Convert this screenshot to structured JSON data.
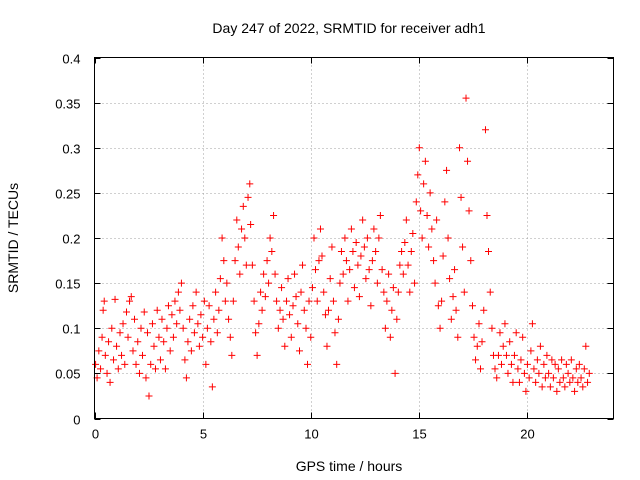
{
  "chart_data": {
    "type": "scatter",
    "title": "Day 247 of 2022, SRMTID for receiver adh1",
    "xlabel": "GPS time / hours",
    "ylabel": "SRMTID / TECUs",
    "xlim": [
      0,
      24
    ],
    "ylim": [
      0,
      0.4
    ],
    "x_ticks": [
      0,
      5,
      10,
      15,
      20
    ],
    "x_tick_labels": [
      "0",
      "5",
      "10",
      "15",
      "20"
    ],
    "y_ticks": [
      0,
      0.05,
      0.1,
      0.15,
      0.2,
      0.25,
      0.3,
      0.35,
      0.4
    ],
    "y_tick_labels": [
      "0",
      "0.05",
      "0.1",
      "0.15",
      "0.2",
      "0.25",
      "0.3",
      "0.35",
      "0.4"
    ],
    "grid": true,
    "marker": "+",
    "color": "#ff0000",
    "series": [
      {
        "name": "SRMTID",
        "points": [
          [
            0.05,
            0.06
          ],
          [
            0.12,
            0.045
          ],
          [
            0.2,
            0.075
          ],
          [
            0.28,
            0.055
          ],
          [
            0.35,
            0.09
          ],
          [
            0.4,
            0.12
          ],
          [
            0.45,
            0.13
          ],
          [
            0.5,
            0.07
          ],
          [
            0.58,
            0.05
          ],
          [
            0.65,
            0.085
          ],
          [
            0.72,
            0.04
          ],
          [
            0.8,
            0.1
          ],
          [
            0.88,
            0.065
          ],
          [
            0.95,
            0.132
          ],
          [
            1.02,
            0.08
          ],
          [
            1.1,
            0.055
          ],
          [
            1.18,
            0.095
          ],
          [
            1.25,
            0.07
          ],
          [
            1.32,
            0.105
          ],
          [
            1.4,
            0.06
          ],
          [
            1.48,
            0.118
          ],
          [
            1.55,
            0.09
          ],
          [
            1.62,
            0.13
          ],
          [
            1.7,
            0.135
          ],
          [
            1.78,
            0.075
          ],
          [
            1.85,
            0.11
          ],
          [
            1.92,
            0.06
          ],
          [
            2.0,
            0.085
          ],
          [
            2.08,
            0.05
          ],
          [
            2.15,
            0.1
          ],
          [
            2.22,
            0.07
          ],
          [
            2.3,
            0.118
          ],
          [
            2.38,
            0.045
          ],
          [
            2.45,
            0.095
          ],
          [
            2.52,
            0.025
          ],
          [
            2.6,
            0.06
          ],
          [
            2.68,
            0.105
          ],
          [
            2.75,
            0.08
          ],
          [
            2.82,
            0.055
          ],
          [
            2.9,
            0.12
          ],
          [
            2.98,
            0.09
          ],
          [
            3.05,
            0.065
          ],
          [
            3.12,
            0.11
          ],
          [
            3.2,
            0.085
          ],
          [
            3.28,
            0.055
          ],
          [
            3.35,
            0.1
          ],
          [
            3.42,
            0.125
          ],
          [
            3.5,
            0.075
          ],
          [
            3.58,
            0.115
          ],
          [
            3.65,
            0.09
          ],
          [
            3.72,
            0.13
          ],
          [
            3.8,
            0.105
          ],
          [
            3.88,
            0.14
          ],
          [
            3.95,
            0.12
          ],
          [
            4.02,
            0.15
          ],
          [
            4.1,
            0.1
          ],
          [
            4.18,
            0.065
          ],
          [
            4.25,
            0.045
          ],
          [
            4.32,
            0.085
          ],
          [
            4.4,
            0.11
          ],
          [
            4.48,
            0.075
          ],
          [
            4.55,
            0.125
          ],
          [
            4.62,
            0.095
          ],
          [
            4.7,
            0.14
          ],
          [
            4.78,
            0.105
          ],
          [
            4.85,
            0.08
          ],
          [
            4.92,
            0.115
          ],
          [
            5.0,
            0.09
          ],
          [
            5.08,
            0.13
          ],
          [
            5.15,
            0.06
          ],
          [
            5.22,
            0.1
          ],
          [
            5.3,
            0.125
          ],
          [
            5.38,
            0.085
          ],
          [
            5.45,
            0.035
          ],
          [
            5.52,
            0.11
          ],
          [
            5.6,
            0.14
          ],
          [
            5.68,
            0.095
          ],
          [
            5.75,
            0.12
          ],
          [
            5.82,
            0.155
          ],
          [
            5.9,
            0.2
          ],
          [
            5.98,
            0.175
          ],
          [
            6.05,
            0.13
          ],
          [
            6.12,
            0.15
          ],
          [
            6.2,
            0.11
          ],
          [
            6.28,
            0.09
          ],
          [
            6.35,
            0.07
          ],
          [
            6.42,
            0.13
          ],
          [
            6.5,
            0.175
          ],
          [
            6.58,
            0.22
          ],
          [
            6.65,
            0.19
          ],
          [
            6.72,
            0.16
          ],
          [
            6.8,
            0.21
          ],
          [
            6.88,
            0.235
          ],
          [
            6.95,
            0.2
          ],
          [
            7.02,
            0.17
          ],
          [
            7.1,
            0.245
          ],
          [
            7.18,
            0.26
          ],
          [
            7.22,
            0.215
          ],
          [
            7.3,
            0.17
          ],
          [
            7.38,
            0.13
          ],
          [
            7.45,
            0.095
          ],
          [
            7.52,
            0.07
          ],
          [
            7.6,
            0.105
          ],
          [
            7.68,
            0.14
          ],
          [
            7.75,
            0.12
          ],
          [
            7.82,
            0.16
          ],
          [
            7.9,
            0.135
          ],
          [
            7.98,
            0.175
          ],
          [
            8.05,
            0.15
          ],
          [
            8.12,
            0.2
          ],
          [
            8.2,
            0.185
          ],
          [
            8.28,
            0.225
          ],
          [
            8.35,
            0.16
          ],
          [
            8.42,
            0.13
          ],
          [
            8.5,
            0.1
          ],
          [
            8.58,
            0.12
          ],
          [
            8.65,
            0.145
          ],
          [
            8.72,
            0.11
          ],
          [
            8.8,
            0.08
          ],
          [
            8.88,
            0.13
          ],
          [
            8.95,
            0.155
          ],
          [
            9.02,
            0.115
          ],
          [
            9.1,
            0.09
          ],
          [
            9.18,
            0.125
          ],
          [
            9.25,
            0.16
          ],
          [
            9.32,
            0.135
          ],
          [
            9.4,
            0.105
          ],
          [
            9.48,
            0.075
          ],
          [
            9.55,
            0.14
          ],
          [
            9.62,
            0.17
          ],
          [
            9.7,
            0.12
          ],
          [
            9.78,
            0.1
          ],
          [
            9.85,
            0.06
          ],
          [
            9.92,
            0.13
          ],
          [
            10.0,
            0.09
          ],
          [
            10.08,
            0.145
          ],
          [
            10.15,
            0.2
          ],
          [
            10.22,
            0.165
          ],
          [
            10.3,
            0.13
          ],
          [
            10.38,
            0.175
          ],
          [
            10.45,
            0.21
          ],
          [
            10.52,
            0.18
          ],
          [
            10.6,
            0.14
          ],
          [
            10.68,
            0.115
          ],
          [
            10.75,
            0.08
          ],
          [
            10.82,
            0.12
          ],
          [
            10.9,
            0.155
          ],
          [
            10.98,
            0.19
          ],
          [
            11.05,
            0.13
          ],
          [
            11.12,
            0.095
          ],
          [
            11.2,
            0.06
          ],
          [
            11.28,
            0.11
          ],
          [
            11.35,
            0.15
          ],
          [
            11.42,
            0.185
          ],
          [
            11.5,
            0.16
          ],
          [
            11.58,
            0.2
          ],
          [
            11.65,
            0.175
          ],
          [
            11.72,
            0.13
          ],
          [
            11.8,
            0.165
          ],
          [
            11.88,
            0.21
          ],
          [
            11.95,
            0.185
          ],
          [
            12.02,
            0.145
          ],
          [
            12.1,
            0.195
          ],
          [
            12.18,
            0.17
          ],
          [
            12.25,
            0.135
          ],
          [
            12.32,
            0.18
          ],
          [
            12.4,
            0.22
          ],
          [
            12.48,
            0.19
          ],
          [
            12.55,
            0.155
          ],
          [
            12.62,
            0.2
          ],
          [
            12.7,
            0.165
          ],
          [
            12.78,
            0.125
          ],
          [
            12.85,
            0.175
          ],
          [
            12.92,
            0.21
          ],
          [
            13.0,
            0.185
          ],
          [
            13.08,
            0.15
          ],
          [
            13.15,
            0.2
          ],
          [
            13.22,
            0.225
          ],
          [
            13.3,
            0.165
          ],
          [
            13.38,
            0.14
          ],
          [
            13.45,
            0.1
          ],
          [
            13.52,
            0.13
          ],
          [
            13.6,
            0.16
          ],
          [
            13.68,
            0.09
          ],
          [
            13.75,
            0.12
          ],
          [
            13.82,
            0.145
          ],
          [
            13.9,
            0.05
          ],
          [
            13.98,
            0.11
          ],
          [
            14.05,
            0.14
          ],
          [
            14.12,
            0.17
          ],
          [
            14.2,
            0.185
          ],
          [
            14.28,
            0.16
          ],
          [
            14.35,
            0.195
          ],
          [
            14.42,
            0.22
          ],
          [
            14.5,
            0.17
          ],
          [
            14.58,
            0.14
          ],
          [
            14.65,
            0.185
          ],
          [
            14.72,
            0.205
          ],
          [
            14.8,
            0.15
          ],
          [
            14.88,
            0.24
          ],
          [
            14.95,
            0.27
          ],
          [
            15.02,
            0.3
          ],
          [
            15.08,
            0.23
          ],
          [
            15.15,
            0.2
          ],
          [
            15.22,
            0.26
          ],
          [
            15.3,
            0.285
          ],
          [
            15.38,
            0.225
          ],
          [
            15.45,
            0.19
          ],
          [
            15.52,
            0.25
          ],
          [
            15.6,
            0.21
          ],
          [
            15.68,
            0.175
          ],
          [
            15.75,
            0.15
          ],
          [
            15.82,
            0.22
          ],
          [
            15.9,
            0.125
          ],
          [
            15.98,
            0.1
          ],
          [
            16.05,
            0.13
          ],
          [
            16.12,
            0.18
          ],
          [
            16.2,
            0.24
          ],
          [
            16.28,
            0.275
          ],
          [
            16.35,
            0.2
          ],
          [
            16.42,
            0.155
          ],
          [
            16.5,
            0.11
          ],
          [
            16.58,
            0.135
          ],
          [
            16.65,
            0.165
          ],
          [
            16.72,
            0.12
          ],
          [
            16.8,
            0.09
          ],
          [
            16.88,
            0.3
          ],
          [
            16.95,
            0.245
          ],
          [
            17.02,
            0.19
          ],
          [
            17.1,
            0.14
          ],
          [
            17.18,
            0.355
          ],
          [
            17.25,
            0.285
          ],
          [
            17.32,
            0.23
          ],
          [
            17.4,
            0.175
          ],
          [
            17.48,
            0.125
          ],
          [
            17.55,
            0.09
          ],
          [
            17.62,
            0.065
          ],
          [
            17.7,
            0.08
          ],
          [
            17.78,
            0.105
          ],
          [
            17.85,
            0.055
          ],
          [
            17.92,
            0.085
          ],
          [
            18.0,
            0.12
          ],
          [
            18.08,
            0.32
          ],
          [
            18.15,
            0.225
          ],
          [
            18.22,
            0.185
          ],
          [
            18.3,
            0.14
          ],
          [
            18.38,
            0.1
          ],
          [
            18.45,
            0.07
          ],
          [
            18.52,
            0.055
          ],
          [
            18.6,
            0.045
          ],
          [
            18.68,
            0.07
          ],
          [
            18.75,
            0.095
          ],
          [
            18.82,
            0.06
          ],
          [
            18.9,
            0.08
          ],
          [
            18.98,
            0.105
          ],
          [
            19.05,
            0.07
          ],
          [
            19.12,
            0.05
          ],
          [
            19.2,
            0.085
          ],
          [
            19.28,
            0.06
          ],
          [
            19.35,
            0.04
          ],
          [
            19.42,
            0.07
          ],
          [
            19.5,
            0.095
          ],
          [
            19.58,
            0.055
          ],
          [
            19.65,
            0.04
          ],
          [
            19.72,
            0.065
          ],
          [
            19.8,
            0.09
          ],
          [
            19.88,
            0.05
          ],
          [
            19.95,
            0.03
          ],
          [
            20.02,
            0.06
          ],
          [
            20.1,
            0.045
          ],
          [
            20.18,
            0.075
          ],
          [
            20.25,
            0.105
          ],
          [
            20.32,
            0.055
          ],
          [
            20.4,
            0.04
          ],
          [
            20.48,
            0.065
          ],
          [
            20.55,
            0.05
          ],
          [
            20.62,
            0.08
          ],
          [
            20.7,
            0.035
          ],
          [
            20.78,
            0.06
          ],
          [
            20.85,
            0.045
          ],
          [
            20.92,
            0.07
          ],
          [
            21.0,
            0.05
          ],
          [
            21.08,
            0.035
          ],
          [
            21.15,
            0.065
          ],
          [
            21.22,
            0.045
          ],
          [
            21.3,
            0.06
          ],
          [
            21.38,
            0.03
          ],
          [
            21.45,
            0.055
          ],
          [
            21.52,
            0.04
          ],
          [
            21.6,
            0.065
          ],
          [
            21.68,
            0.045
          ],
          [
            21.75,
            0.035
          ],
          [
            21.82,
            0.06
          ],
          [
            21.9,
            0.05
          ],
          [
            21.98,
            0.04
          ],
          [
            22.05,
            0.065
          ],
          [
            22.12,
            0.045
          ],
          [
            22.2,
            0.03
          ],
          [
            22.28,
            0.055
          ],
          [
            22.35,
            0.04
          ],
          [
            22.42,
            0.06
          ],
          [
            22.5,
            0.045
          ],
          [
            22.58,
            0.035
          ],
          [
            22.65,
            0.055
          ],
          [
            22.72,
            0.08
          ],
          [
            22.8,
            0.04
          ],
          [
            22.88,
            0.05
          ]
        ]
      }
    ]
  }
}
